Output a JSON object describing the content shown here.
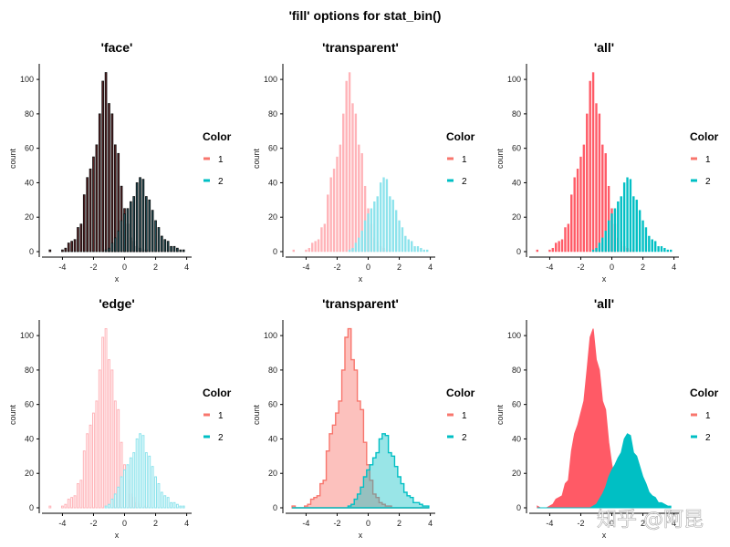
{
  "figure": {
    "title": "'fill' options for stat_bin()",
    "watermark": "知乎 @阿昆"
  },
  "colors": {
    "group1": "#F8766D",
    "group1_light": "#FFB3B8",
    "group1_solid": "#FF5A66",
    "group2": "#00BFC4",
    "group2_light": "#8DE3EC",
    "dark_red": "#5B2023",
    "dark_teal": "#1F4E57"
  },
  "chart_data": [
    {
      "type": "bar",
      "panel": "face",
      "title": "'face'",
      "xlabel": "x",
      "ylabel": "count",
      "xlim": [
        -5.2,
        4.2
      ],
      "ylim": [
        0,
        108
      ],
      "xticks": [
        "-4",
        "-2",
        "0",
        "2",
        "4"
      ],
      "yticks": [
        "0",
        "20",
        "40",
        "60",
        "80",
        "100"
      ],
      "legend": {
        "title": "Color",
        "entries": [
          "1",
          "2"
        ],
        "position": "right"
      },
      "x": [
        -4.8,
        -4.6,
        -4.4,
        -4.2,
        -4.0,
        -3.8,
        -3.6,
        -3.4,
        -3.2,
        -3.0,
        -2.8,
        -2.6,
        -2.4,
        -2.2,
        -2.0,
        -1.8,
        -1.6,
        -1.4,
        -1.2,
        -1.0,
        -0.8,
        -0.6,
        -0.4,
        -0.2,
        0.0,
        0.2,
        0.4,
        0.6,
        0.8,
        1.0,
        1.2,
        1.4,
        1.6,
        1.8,
        2.0,
        2.2,
        2.4,
        2.6,
        2.8,
        3.0,
        3.2,
        3.4,
        3.6,
        3.8
      ],
      "series": [
        {
          "name": "1",
          "values": [
            1,
            0,
            0,
            0,
            1,
            2,
            5,
            6,
            7,
            14,
            16,
            33,
            43,
            48,
            55,
            62,
            80,
            99,
            104,
            86,
            80,
            62,
            57,
            38,
            25,
            16,
            8,
            6,
            3,
            2,
            1,
            1,
            0,
            0,
            0,
            0,
            0,
            0,
            0,
            0,
            0,
            0,
            0,
            0
          ]
        },
        {
          "name": "2",
          "values": [
            0,
            0,
            0,
            0,
            0,
            0,
            0,
            0,
            0,
            0,
            0,
            0,
            0,
            0,
            0,
            0,
            0,
            0,
            1,
            2,
            5,
            8,
            12,
            18,
            22,
            25,
            29,
            32,
            40,
            43,
            42,
            32,
            30,
            24,
            18,
            14,
            9,
            7,
            6,
            3,
            3,
            2,
            1,
            1
          ]
        }
      ]
    },
    {
      "type": "bar",
      "panel": "transparent-bars",
      "title": "'transparent'",
      "xlabel": "x",
      "ylabel": "count",
      "xlim": [
        -5.2,
        4.2
      ],
      "ylim": [
        0,
        108
      ],
      "xticks": [
        "-4",
        "-2",
        "0",
        "2",
        "4"
      ],
      "yticks": [
        "0",
        "20",
        "40",
        "60",
        "80",
        "100"
      ],
      "legend": {
        "title": "Color",
        "entries": [
          "1",
          "2"
        ],
        "position": "right"
      }
    },
    {
      "type": "bar",
      "panel": "all-bars",
      "title": "'all'",
      "xlabel": "x",
      "ylabel": "count",
      "xlim": [
        -5.2,
        4.2
      ],
      "ylim": [
        0,
        108
      ],
      "xticks": [
        "-4",
        "-2",
        "0",
        "2",
        "4"
      ],
      "yticks": [
        "0",
        "20",
        "40",
        "60",
        "80",
        "100"
      ],
      "legend": {
        "title": "Color",
        "entries": [
          "1",
          "2"
        ],
        "position": "right"
      }
    },
    {
      "type": "bar",
      "panel": "edge",
      "title": "'edge'",
      "xlabel": "x",
      "ylabel": "count",
      "xlim": [
        -5.2,
        4.2
      ],
      "ylim": [
        0,
        108
      ],
      "xticks": [
        "-4",
        "-2",
        "0",
        "2",
        "4"
      ],
      "yticks": [
        "0",
        "20",
        "40",
        "60",
        "80",
        "100"
      ],
      "legend": {
        "title": "Color",
        "entries": [
          "1",
          "2"
        ],
        "position": "right"
      }
    },
    {
      "type": "area",
      "panel": "transparent-step",
      "title": "'transparent'",
      "xlabel": "x",
      "ylabel": "count",
      "xlim": [
        -5.2,
        4.2
      ],
      "ylim": [
        0,
        108
      ],
      "xticks": [
        "-4",
        "-2",
        "0",
        "2",
        "4"
      ],
      "yticks": [
        "0",
        "20",
        "40",
        "60",
        "80",
        "100"
      ],
      "legend": {
        "title": "Color",
        "entries": [
          "1",
          "2"
        ],
        "position": "right"
      }
    },
    {
      "type": "area",
      "panel": "all-area",
      "title": "'all'",
      "xlabel": "x",
      "ylabel": "count",
      "xlim": [
        -5.2,
        4.2
      ],
      "ylim": [
        0,
        108
      ],
      "xticks": [
        "-4",
        "-2",
        "0",
        "2",
        "4"
      ],
      "yticks": [
        "0",
        "20",
        "40",
        "60",
        "80",
        "100"
      ],
      "legend": {
        "title": "Color",
        "entries": [
          "1",
          "2"
        ],
        "position": "right"
      }
    }
  ]
}
